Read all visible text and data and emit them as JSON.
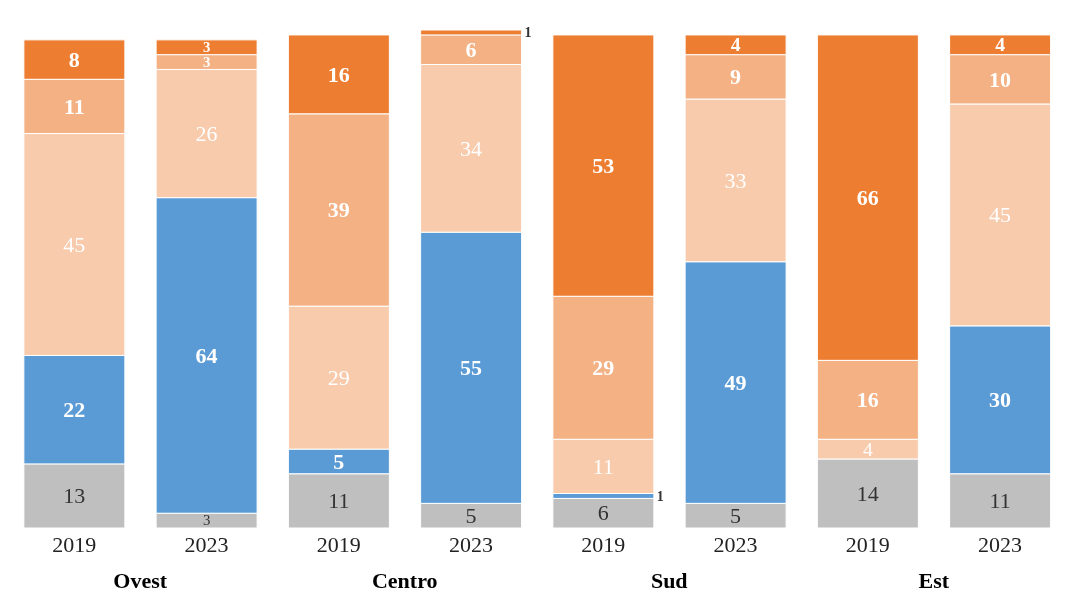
{
  "chart_data": {
    "type": "bar",
    "stacked": true,
    "relative": false,
    "data_labels": true,
    "categories": [
      "2019",
      "2023",
      "2019",
      "2023",
      "2019",
      "2023",
      "2019",
      "2023"
    ],
    "series": [
      {
        "color": "#bfbfbf",
        "values": [
          13,
          3,
          11,
          5,
          6,
          5,
          14,
          11
        ]
      },
      {
        "color": "#5b9bd5",
        "values": [
          22,
          64,
          5,
          55,
          1,
          49,
          null,
          30
        ]
      },
      {
        "color": "#f8cbad",
        "values": [
          45,
          26,
          29,
          34,
          11,
          33,
          4,
          45
        ]
      },
      {
        "color": "#f4b183",
        "values": [
          11,
          3,
          39,
          6,
          29,
          9,
          16,
          10
        ]
      },
      {
        "color": "#ed7d31",
        "values": [
          8,
          3,
          16,
          1,
          53,
          4,
          66,
          4
        ]
      }
    ],
    "annotations": [
      "Ovest",
      "Centro",
      "Sud",
      "Est"
    ]
  }
}
